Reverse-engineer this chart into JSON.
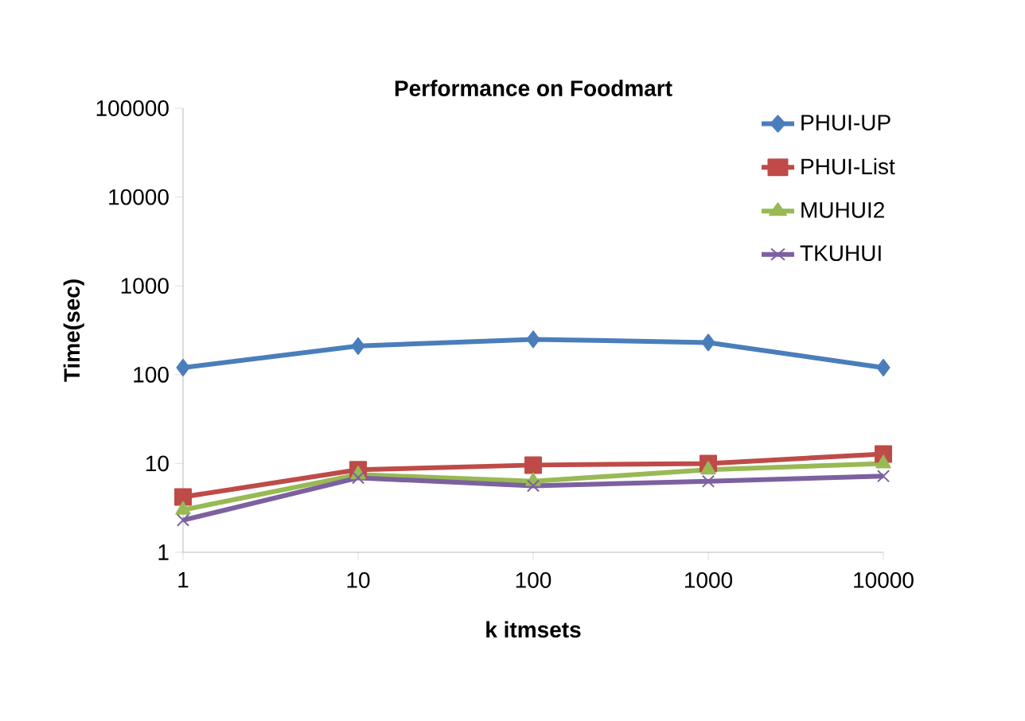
{
  "chart_data": {
    "type": "line",
    "title": "Performance on Foodmart",
    "xlabel": "k  itmsets",
    "ylabel": "Time(sec)",
    "categories": [
      "1",
      "10",
      "100",
      "1000",
      "10000"
    ],
    "series": [
      {
        "name": "PHUI-UP",
        "color": "#4a7ebb",
        "marker": "diamond",
        "values": [
          120,
          210,
          250,
          230,
          120
        ]
      },
      {
        "name": "PHUI-List",
        "color": "#be4b48",
        "marker": "square",
        "values": [
          4.2,
          8.5,
          9.6,
          10,
          12.8
        ]
      },
      {
        "name": "MUHUI2",
        "color": "#98b954",
        "marker": "triangle",
        "values": [
          3.0,
          7.5,
          6.3,
          8.5,
          10
        ]
      },
      {
        "name": "TKUHUI",
        "color": "#7d60a0",
        "marker": "cross",
        "values": [
          2.3,
          6.9,
          5.6,
          6.3,
          7.2
        ]
      }
    ],
    "log": "y",
    "ylim": [
      1,
      100000
    ],
    "yticks": [
      1,
      10,
      100,
      1000,
      10000,
      100000
    ],
    "grid": false,
    "legend": "top right"
  }
}
